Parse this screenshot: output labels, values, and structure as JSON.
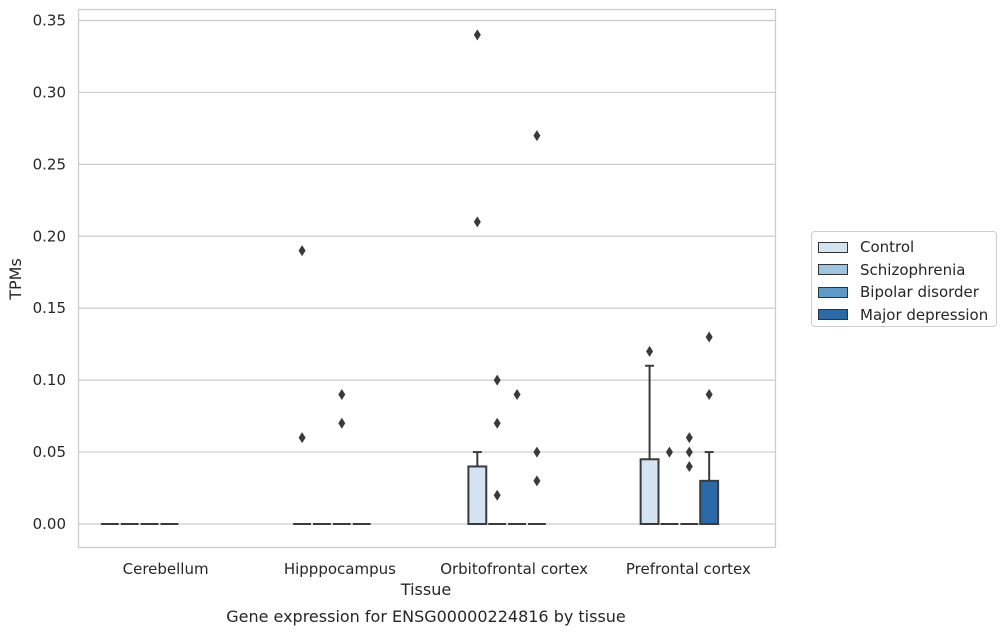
{
  "caption": "Gene expression for ENSG00000224816 by tissue",
  "chart_data": {
    "type": "box",
    "xlabel": "Tissue",
    "ylabel": "TPMs",
    "ylim": [
      -0.017,
      0.357
    ],
    "yticks": [
      0.0,
      0.05,
      0.1,
      0.15,
      0.2,
      0.25,
      0.3,
      0.35
    ],
    "ytick_labels": [
      "0.00",
      "0.05",
      "0.10",
      "0.15",
      "0.20",
      "0.25",
      "0.30",
      "0.35"
    ],
    "grid": "horizontal",
    "legend_position": "right",
    "categories": [
      "Cerebellum",
      "Hipppocampus",
      "Orbitofrontal cortex",
      "Prefrontal cortex"
    ],
    "series": [
      {
        "name": "Control",
        "color": "#d4e3f2",
        "boxes": [
          {
            "q1": 0,
            "median": 0,
            "q3": 0,
            "whisker_low": 0,
            "whisker_high": 0,
            "outliers": []
          },
          {
            "q1": 0,
            "median": 0,
            "q3": 0,
            "whisker_low": 0,
            "whisker_high": 0,
            "outliers": [
              0.19,
              0.06
            ]
          },
          {
            "q1": 0,
            "median": 0,
            "q3": 0.04,
            "whisker_low": 0,
            "whisker_high": 0.05,
            "outliers": [
              0.34,
              0.21
            ]
          },
          {
            "q1": 0,
            "median": 0,
            "q3": 0.045,
            "whisker_low": 0,
            "whisker_high": 0.11,
            "outliers": [
              0.12
            ]
          }
        ]
      },
      {
        "name": "Schizophrenia",
        "color": "#9ec4df",
        "boxes": [
          {
            "q1": 0,
            "median": 0,
            "q3": 0,
            "whisker_low": 0,
            "whisker_high": 0,
            "outliers": []
          },
          {
            "q1": 0,
            "median": 0,
            "q3": 0,
            "whisker_low": 0,
            "whisker_high": 0,
            "outliers": []
          },
          {
            "q1": 0,
            "median": 0,
            "q3": 0,
            "whisker_low": 0,
            "whisker_high": 0,
            "outliers": [
              0.1,
              0.07,
              0.02
            ]
          },
          {
            "q1": 0,
            "median": 0,
            "q3": 0,
            "whisker_low": 0,
            "whisker_high": 0,
            "outliers": [
              0.05
            ]
          }
        ]
      },
      {
        "name": "Bipolar disorder",
        "color": "#5c9bc9",
        "boxes": [
          {
            "q1": 0,
            "median": 0,
            "q3": 0,
            "whisker_low": 0,
            "whisker_high": 0,
            "outliers": []
          },
          {
            "q1": 0,
            "median": 0,
            "q3": 0,
            "whisker_low": 0,
            "whisker_high": 0,
            "outliers": [
              0.09,
              0.07
            ]
          },
          {
            "q1": 0,
            "median": 0,
            "q3": 0,
            "whisker_low": 0,
            "whisker_high": 0,
            "outliers": [
              0.09
            ]
          },
          {
            "q1": 0,
            "median": 0,
            "q3": 0,
            "whisker_low": 0,
            "whisker_high": 0,
            "outliers": [
              0.06,
              0.05,
              0.04
            ]
          }
        ]
      },
      {
        "name": "Major depression",
        "color": "#2a6aa8",
        "boxes": [
          {
            "q1": 0,
            "median": 0,
            "q3": 0,
            "whisker_low": 0,
            "whisker_high": 0,
            "outliers": []
          },
          {
            "q1": 0,
            "median": 0,
            "q3": 0,
            "whisker_low": 0,
            "whisker_high": 0,
            "outliers": []
          },
          {
            "q1": 0,
            "median": 0,
            "q3": 0,
            "whisker_low": 0,
            "whisker_high": 0,
            "outliers": [
              0.27,
              0.05,
              0.03
            ]
          },
          {
            "q1": 0,
            "median": 0,
            "q3": 0.03,
            "whisker_low": 0,
            "whisker_high": 0.05,
            "outliers": [
              0.13,
              0.09
            ]
          }
        ]
      }
    ]
  }
}
